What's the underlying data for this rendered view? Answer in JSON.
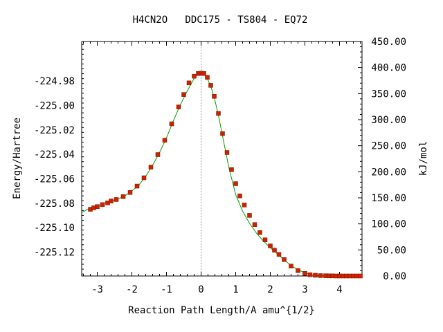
{
  "chart_data": {
    "type": "scatter",
    "title": "H4CN2O   DDC175 - TS804 - EQ72",
    "xlabel": "Reaction Path Length/A amu^{1/2}",
    "ylabel": "Energy/Hartree",
    "y2label": "kJ/mol",
    "xlim": [
      -3.45,
      4.65
    ],
    "ylim": [
      -225.1396,
      -224.9476
    ],
    "y2lim": [
      0,
      450
    ],
    "x_ticks": [
      -3,
      -2,
      -1,
      0,
      1,
      2,
      3,
      4
    ],
    "y_ticks": [
      -224.98,
      -225.0,
      -225.02,
      -225.04,
      -225.06,
      -225.08,
      -225.1,
      -225.12
    ],
    "y_tick_labels": [
      "-224.98",
      "-225.00",
      "-225.02",
      "-225.04",
      "-225.06",
      "-225.08",
      "-225.10",
      "-225.12"
    ],
    "y2_ticks": [
      450,
      400,
      350,
      300,
      250,
      200,
      150,
      100,
      50,
      0
    ],
    "y2_tick_labels": [
      "450.00",
      "400.00",
      "350.00",
      "300.00",
      "250.00",
      "200.00",
      "150.00",
      "100.00",
      "50.00",
      "0.00"
    ],
    "grid": false,
    "ts_line_x": 0,
    "colors": {
      "curve": "#00a000",
      "points": "#cc2200",
      "ts_line": "#999999"
    },
    "curve": {
      "x": [
        -3.45,
        -3.3,
        -3.0,
        -2.7,
        -2.4,
        -2.2,
        -2.0,
        -1.8,
        -1.6,
        -1.4,
        -1.2,
        -1.0,
        -0.8,
        -0.6,
        -0.4,
        -0.2,
        -0.1,
        0.0,
        0.1,
        0.2,
        0.3,
        0.4,
        0.5,
        0.6,
        0.8,
        1.0,
        1.2,
        1.4,
        1.6,
        1.8,
        2.0,
        2.2,
        2.4,
        2.6,
        2.8,
        3.0,
        3.2,
        3.4,
        3.6,
        3.8,
        4.0,
        4.3,
        4.6
      ],
      "y": [
        -225.0877,
        -225.0853,
        -225.0823,
        -225.079,
        -225.0765,
        -225.074,
        -225.07,
        -225.0652,
        -225.058,
        -225.049,
        -225.0385,
        -225.0265,
        -225.0125,
        -224.9995,
        -224.9882,
        -224.9778,
        -224.9742,
        -224.9736,
        -224.9748,
        -224.979,
        -224.986,
        -224.9957,
        -225.008,
        -225.022,
        -225.0505,
        -225.073,
        -225.0865,
        -225.0965,
        -225.1045,
        -225.111,
        -225.1165,
        -225.1215,
        -225.1265,
        -225.131,
        -225.1345,
        -225.137,
        -225.1385,
        -225.1391,
        -225.1394,
        -225.1395,
        -225.1396,
        -225.1396,
        -225.1396
      ]
    },
    "points": {
      "x": [
        -3.2,
        -3.1,
        -3.0,
        -2.85,
        -2.7,
        -2.6,
        -2.45,
        -2.25,
        -2.05,
        -1.85,
        -1.65,
        -1.45,
        -1.25,
        -1.05,
        -0.85,
        -0.65,
        -0.5,
        -0.35,
        -0.2,
        -0.08,
        0.0,
        0.08,
        0.18,
        0.28,
        0.38,
        0.5,
        0.62,
        0.75,
        0.88,
        1.0,
        1.12,
        1.25,
        1.4,
        1.55,
        1.7,
        1.85,
        2.0,
        2.12,
        2.25,
        2.4,
        2.6,
        2.8,
        3.0,
        3.15,
        3.3,
        3.45,
        3.6,
        3.7,
        3.8,
        3.9,
        4.0,
        4.1,
        4.2,
        4.3,
        4.4,
        4.5,
        4.6
      ],
      "y": [
        -225.085,
        -225.0838,
        -225.0828,
        -225.0812,
        -225.0798,
        -225.0782,
        -225.077,
        -225.0746,
        -225.0712,
        -225.066,
        -225.0592,
        -225.0505,
        -225.0402,
        -225.0285,
        -225.015,
        -225.0012,
        -224.991,
        -224.9815,
        -224.976,
        -224.9738,
        -224.9736,
        -224.9738,
        -224.977,
        -224.9835,
        -224.9925,
        -225.0065,
        -225.023,
        -225.0385,
        -225.0525,
        -225.064,
        -225.074,
        -225.0815,
        -225.09,
        -225.0975,
        -225.104,
        -225.11,
        -225.115,
        -225.1185,
        -225.122,
        -225.1262,
        -225.1315,
        -225.1352,
        -225.1375,
        -225.1386,
        -225.139,
        -225.1393,
        -225.1394,
        -225.1395,
        -225.1395,
        -225.1396,
        -225.1396,
        -225.1396,
        -225.1396,
        -225.1396,
        -225.1396,
        -225.1396,
        -225.1396
      ]
    }
  }
}
